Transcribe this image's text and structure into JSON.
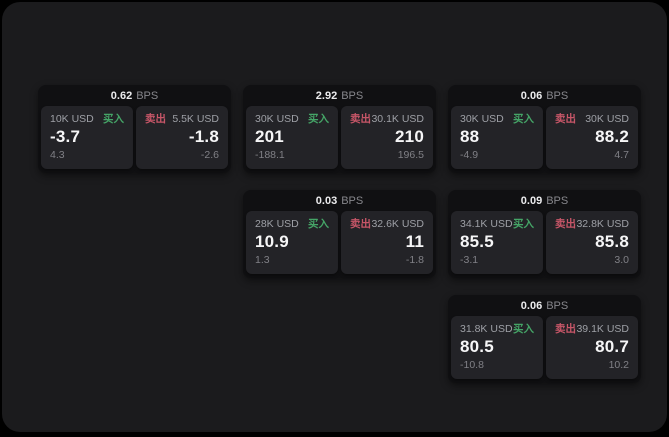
{
  "labels": {
    "bps_unit": "BPS",
    "buy": "买入",
    "sell": "卖出"
  },
  "colors": {
    "buy_green": "#45a567",
    "sell_red": "#c75668",
    "panel_bg": "#1b1b1d",
    "card_bg": "#101012",
    "tile_bg": "#232327",
    "outer_bg": "#000000"
  },
  "cards": [
    {
      "row": 1,
      "col": 1,
      "bps": "0.62",
      "buy": {
        "size": "10K USD",
        "price": "-3.7",
        "sub": "4.3"
      },
      "sell": {
        "size": "5.5K USD",
        "price": "-1.8",
        "sub": "-2.6"
      }
    },
    {
      "row": 1,
      "col": 2,
      "bps": "2.92",
      "buy": {
        "size": "30K USD",
        "price": "201",
        "sub": "-188.1"
      },
      "sell": {
        "size": "30.1K USD",
        "price": "210",
        "sub": "196.5"
      }
    },
    {
      "row": 1,
      "col": 3,
      "bps": "0.06",
      "buy": {
        "size": "30K USD",
        "price": "88",
        "sub": "-4.9"
      },
      "sell": {
        "size": "30K USD",
        "price": "88.2",
        "sub": "4.7"
      }
    },
    {
      "row": 2,
      "col": 2,
      "bps": "0.03",
      "buy": {
        "size": "28K USD",
        "price": "10.9",
        "sub": "1.3"
      },
      "sell": {
        "size": "32.6K USD",
        "price": "11",
        "sub": "-1.8"
      }
    },
    {
      "row": 2,
      "col": 3,
      "bps": "0.09",
      "buy": {
        "size": "34.1K USD",
        "price": "85.5",
        "sub": "-3.1"
      },
      "sell": {
        "size": "32.8K USD",
        "price": "85.8",
        "sub": "3.0"
      }
    },
    {
      "row": 3,
      "col": 3,
      "bps": "0.06",
      "buy": {
        "size": "31.8K USD",
        "price": "80.5",
        "sub": "-10.8"
      },
      "sell": {
        "size": "39.1K USD",
        "price": "80.7",
        "sub": "10.2"
      }
    }
  ]
}
